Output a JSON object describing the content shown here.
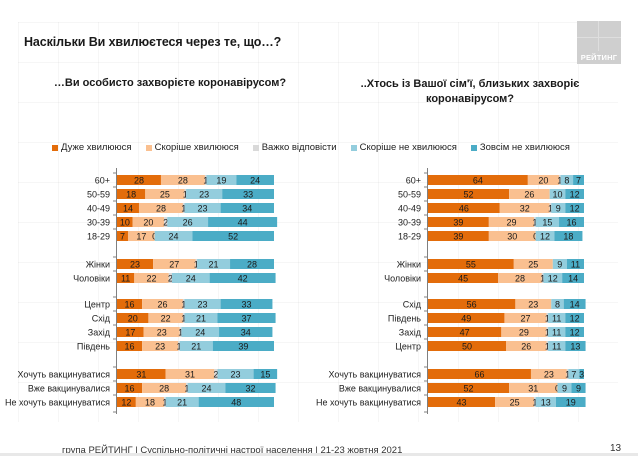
{
  "header": {
    "title": "Наскільки Ви хвилюєтеся через те, що…?",
    "logo_text": "РЕЙТИНГ"
  },
  "legend": [
    {
      "label": "Дуже хвилююся",
      "color": "#E36C0A"
    },
    {
      "label": "Скоріше хвилююся",
      "color": "#FAC090"
    },
    {
      "label": "Важко відповісти",
      "color": "#D9D9D9"
    },
    {
      "label": "Скоріше не хвилююся",
      "color": "#93CDDD"
    },
    {
      "label": "Зовсім не хвилююся",
      "color": "#4BACC6"
    }
  ],
  "chart_data": [
    {
      "type": "bar",
      "orientation": "horizontal-stacked-100",
      "title": "…Ви особисто захворієте коронавірусом?",
      "series_names": [
        "Дуже хвилююся",
        "Скоріше хвилююся",
        "Важко відповісти",
        "Скоріше не хвилююся",
        "Зовсім не хвилююся"
      ],
      "groups": [
        {
          "rows": [
            {
              "label": "60+",
              "values": [
                28,
                28,
                1,
                19,
                24
              ]
            },
            {
              "label": "50-59",
              "values": [
                18,
                25,
                1,
                23,
                33
              ]
            },
            {
              "label": "40-49",
              "values": [
                14,
                28,
                1,
                23,
                34
              ]
            },
            {
              "label": "30-39",
              "values": [
                10,
                20,
                2,
                26,
                44
              ]
            },
            {
              "label": "18-29",
              "values": [
                7,
                17,
                0,
                24,
                52
              ]
            }
          ]
        },
        {
          "rows": [
            {
              "label": "Жінки",
              "values": [
                23,
                27,
                1,
                21,
                28
              ]
            },
            {
              "label": "Чоловіки",
              "values": [
                11,
                22,
                2,
                24,
                42
              ]
            }
          ]
        },
        {
          "rows": [
            {
              "label": "Центр",
              "values": [
                16,
                26,
                1,
                23,
                33
              ]
            },
            {
              "label": "Схід",
              "values": [
                20,
                22,
                1,
                21,
                37
              ]
            },
            {
              "label": "Захід",
              "values": [
                17,
                23,
                1,
                24,
                34
              ]
            },
            {
              "label": "Південь",
              "values": [
                16,
                23,
                1,
                21,
                39
              ]
            }
          ]
        },
        {
          "rows": [
            {
              "label": "Хочуть вакцинуватися",
              "values": [
                31,
                31,
                2,
                23,
                15
              ]
            },
            {
              "label": "Вже вакцинувалися",
              "values": [
                16,
                28,
                1,
                24,
                32
              ]
            },
            {
              "label": "Не хочуть вакцинуватися",
              "values": [
                12,
                18,
                1,
                21,
                48
              ]
            }
          ]
        }
      ],
      "xlim": [
        0,
        100
      ]
    },
    {
      "type": "bar",
      "orientation": "horizontal-stacked-100",
      "title": "..Хтось із Вашої сім'ї, близьких захворіє коронавірусом?",
      "series_names": [
        "Дуже хвилююся",
        "Скоріше хвилююся",
        "Важко відповісти",
        "Скоріше не хвилююся",
        "Зовсім не хвилююся"
      ],
      "groups": [
        {
          "rows": [
            {
              "label": "60+",
              "values": [
                64,
                20,
                1,
                8,
                7
              ]
            },
            {
              "label": "50-59",
              "values": [
                52,
                26,
                0,
                10,
                12
              ]
            },
            {
              "label": "40-49",
              "values": [
                46,
                32,
                1,
                9,
                12
              ]
            },
            {
              "label": "30-39",
              "values": [
                39,
                29,
                1,
                15,
                16
              ]
            },
            {
              "label": "18-29",
              "values": [
                39,
                30,
                0,
                12,
                18
              ]
            }
          ]
        },
        {
          "rows": [
            {
              "label": "Жінки",
              "values": [
                55,
                25,
                0,
                9,
                11
              ]
            },
            {
              "label": "Чоловіки",
              "values": [
                45,
                28,
                1,
                12,
                14
              ]
            }
          ]
        },
        {
          "rows": [
            {
              "label": "Схід",
              "values": [
                56,
                23,
                0,
                8,
                14
              ]
            },
            {
              "label": "Південь",
              "values": [
                49,
                27,
                1,
                11,
                12
              ]
            },
            {
              "label": "Захід",
              "values": [
                47,
                29,
                1,
                11,
                12
              ]
            },
            {
              "label": "Центр",
              "values": [
                50,
                26,
                1,
                11,
                13
              ]
            }
          ]
        },
        {
          "rows": [
            {
              "label": "Хочуть вакцинуватися",
              "values": [
                66,
                23,
                1,
                7,
                3
              ]
            },
            {
              "label": "Вже вакцинувалися",
              "values": [
                52,
                31,
                0,
                9,
                9
              ]
            },
            {
              "label": "Не хочуть вакцинуватися",
              "values": [
                43,
                25,
                1,
                13,
                19
              ]
            }
          ]
        }
      ],
      "xlim": [
        0,
        100
      ]
    }
  ],
  "footer": {
    "text": "група РЕЙТИНГ | Суспільно-політичні настрої населення  | 21-23 жовтня 2021",
    "page_number": "13"
  }
}
